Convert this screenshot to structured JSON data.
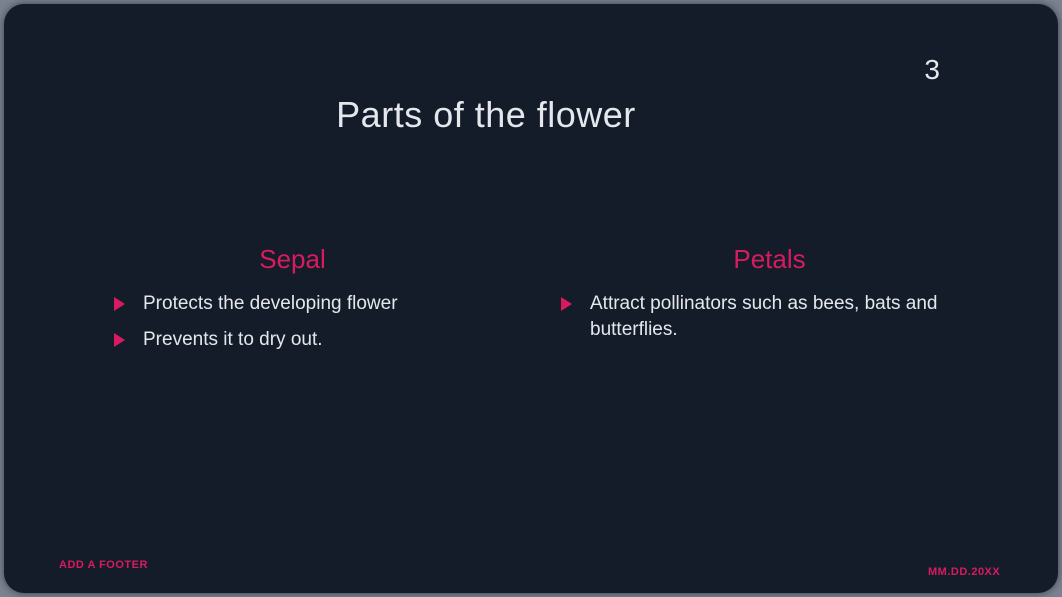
{
  "slide": {
    "number": "3",
    "title": "Parts of the flower",
    "background_color": "#141c29",
    "text_color": "#e4e7ec",
    "accent_color": "#d81b60"
  },
  "columns": [
    {
      "heading": "Sepal",
      "bullets": [
        "Protects the developing flower",
        "Prevents it to dry out."
      ]
    },
    {
      "heading": "Petals",
      "bullets": [
        "Attract pollinators such as bees, bats and butterflies."
      ]
    }
  ],
  "footer": {
    "left": "ADD A FOOTER",
    "right": "MM.DD.20XX"
  }
}
